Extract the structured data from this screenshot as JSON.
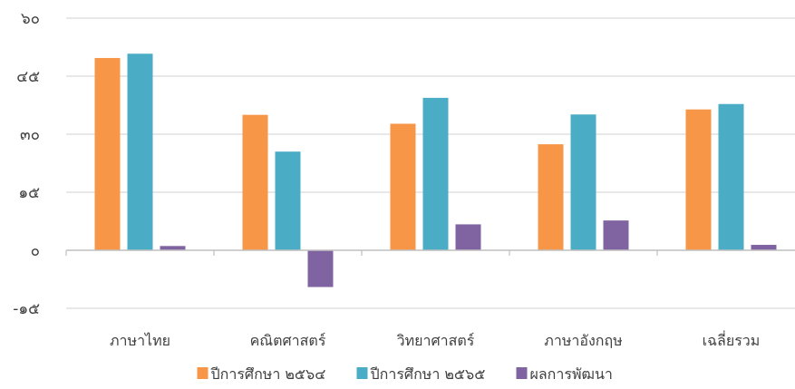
{
  "chart_data": {
    "type": "bar",
    "categories": [
      "ภาษาไทย",
      "คณิตศาสตร์",
      "วิทยาศาสตร์",
      "ภาษาอังกฤษ",
      "เฉลี่ยรวม"
    ],
    "series": [
      {
        "name": "ปีการศึกษา ๒๕๖๔",
        "color": "#F79646",
        "values": [
          49.7,
          35.0,
          32.7,
          27.4,
          36.4
        ]
      },
      {
        "name": "ปีการศึกษา ๒๕๖๕",
        "color": "#4BACC6",
        "values": [
          50.8,
          25.5,
          39.4,
          35.1,
          37.8
        ]
      },
      {
        "name": "ผลการพัฒนา",
        "color": "#8064A2",
        "values": [
          1.1,
          -9.5,
          6.7,
          7.7,
          1.4
        ]
      }
    ],
    "ylim": [
      -15,
      60
    ],
    "yticks": [
      -15,
      0,
      15,
      30,
      45,
      60
    ],
    "ytick_labels": [
      "-๑๕",
      "๐",
      "๑๕",
      "๓๐",
      "๔๕",
      "๖๐"
    ],
    "grid": true,
    "legend_position": "bottom",
    "title": "",
    "xlabel": "",
    "ylabel": ""
  }
}
